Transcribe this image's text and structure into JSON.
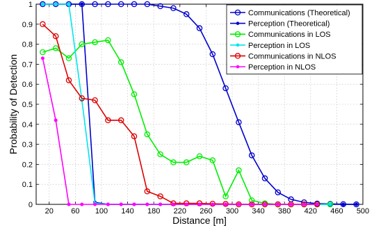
{
  "chart_data": {
    "type": "line",
    "title": "",
    "xlabel": "Distance [m]",
    "ylabel": "Probability of Detection",
    "xlim": [
      0,
      500
    ],
    "ylim": [
      0,
      1
    ],
    "xticks": [
      20,
      60,
      100,
      140,
      180,
      220,
      260,
      300,
      340,
      380,
      420,
      460,
      500
    ],
    "yticks": [
      0,
      0.1,
      0.2,
      0.3,
      0.4,
      0.5,
      0.6,
      0.7,
      0.8,
      0.9,
      1
    ],
    "grid": true,
    "legend_position": "top-right",
    "series": [
      {
        "name": "Communications (Theoretical)",
        "color": "#0000cc",
        "marker": "open-circle",
        "x": [
          10,
          30,
          50,
          70,
          90,
          110,
          130,
          150,
          170,
          190,
          210,
          230,
          250,
          270,
          290,
          310,
          330,
          350,
          370,
          390,
          410,
          430,
          450,
          470,
          490
        ],
        "y": [
          1,
          1,
          1,
          1,
          1,
          1,
          1,
          1,
          1,
          0.99,
          0.98,
          0.95,
          0.88,
          0.75,
          0.58,
          0.41,
          0.245,
          0.13,
          0.06,
          0.025,
          0.01,
          0.004,
          0.002,
          0.001,
          0.0
        ]
      },
      {
        "name": "Perception (Theoretical)",
        "color": "#0000cc",
        "marker": "filled-dot",
        "x": [
          10,
          30,
          50,
          70,
          90,
          110,
          130,
          150,
          170,
          190,
          210,
          230,
          250,
          270,
          290,
          310,
          330,
          350,
          370,
          390,
          410,
          430,
          450,
          470,
          490
        ],
        "y": [
          1,
          1,
          1,
          1,
          0.01,
          0,
          0,
          0,
          0,
          0,
          0,
          0,
          0,
          0,
          0,
          0,
          0,
          0,
          0,
          0,
          0,
          0,
          0,
          0,
          0
        ]
      },
      {
        "name": "Communications in LOS",
        "color": "#00ee00",
        "marker": "open-circle",
        "x": [
          10,
          30,
          50,
          70,
          90,
          110,
          130,
          150,
          170,
          190,
          210,
          230,
          250,
          270,
          290,
          310,
          330,
          350,
          370,
          390,
          410,
          430,
          450
        ],
        "y": [
          0.76,
          0.78,
          0.73,
          0.8,
          0.81,
          0.82,
          0.71,
          0.55,
          0.35,
          0.25,
          0.21,
          0.21,
          0.24,
          0.22,
          0.04,
          0.17,
          0.02,
          0.005,
          0,
          0,
          0,
          0,
          0
        ]
      },
      {
        "name": "Perception in LOS",
        "color": "#00e5ee",
        "marker": "filled-dot",
        "x": [
          10,
          30,
          50,
          70,
          90,
          110,
          130,
          150,
          170,
          190,
          210,
          230,
          250,
          270,
          290,
          310,
          330,
          350,
          370,
          390,
          410,
          430,
          450
        ],
        "y": [
          1,
          1,
          1,
          0.52,
          0.005,
          0,
          0,
          0,
          0,
          0,
          0,
          0,
          0,
          0,
          0,
          0,
          0,
          0,
          0,
          0,
          0,
          0,
          0
        ]
      },
      {
        "name": "Communications in NLOS",
        "color": "#dd0000",
        "marker": "open-circle",
        "x": [
          10,
          30,
          50,
          70,
          90,
          110,
          130,
          150,
          170,
          190,
          210,
          230,
          250,
          270,
          290,
          310,
          330,
          350,
          370,
          390,
          410,
          430
        ],
        "y": [
          0.9,
          0.84,
          0.62,
          0.53,
          0.52,
          0.42,
          0.42,
          0.34,
          0.065,
          0.04,
          0.005,
          0.005,
          0.005,
          0.003,
          0.002,
          0,
          0,
          0,
          0,
          0,
          0,
          0
        ]
      },
      {
        "name": "Perception in NLOS",
        "color": "#ff00ff",
        "marker": "filled-dot",
        "x": [
          10,
          30,
          50,
          70,
          90,
          110,
          130,
          150,
          170,
          190,
          210,
          230,
          250,
          270,
          290,
          310,
          330,
          350,
          370,
          390,
          410,
          430
        ],
        "y": [
          0.73,
          0.42,
          0,
          0,
          0,
          0,
          0,
          0,
          0,
          0,
          0,
          0,
          0,
          0,
          0,
          0,
          0,
          0,
          0,
          0,
          0,
          0
        ]
      }
    ]
  }
}
